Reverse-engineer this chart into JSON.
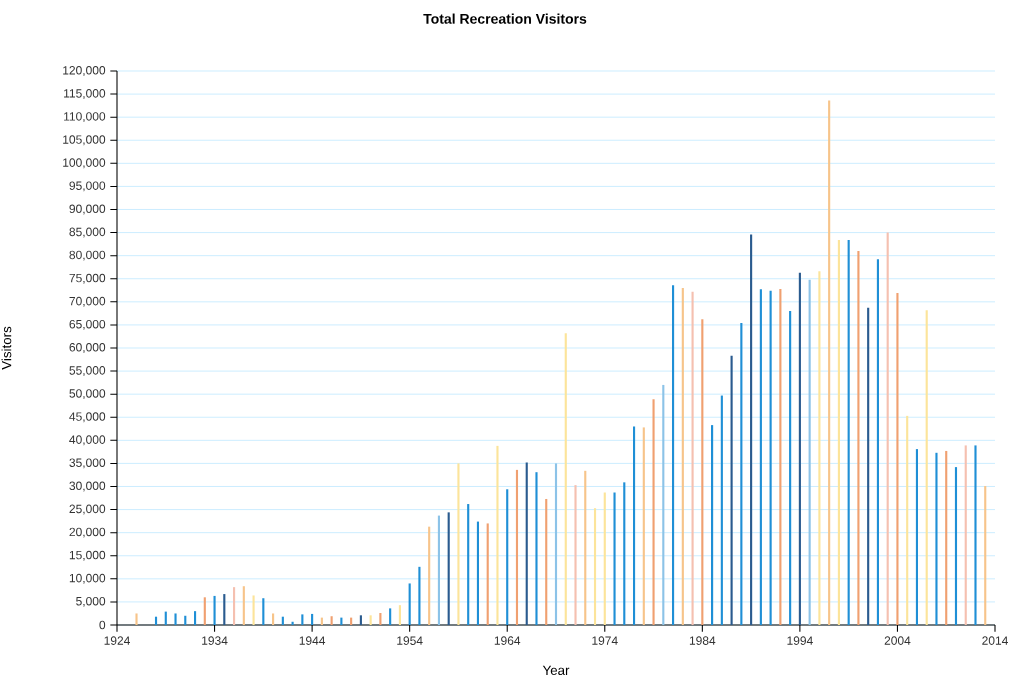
{
  "chart_data": {
    "type": "bar",
    "title": "Total Recreation Visitors",
    "xlabel": "Year",
    "ylabel": "Visitors",
    "x": [
      1926,
      1928,
      1929,
      1930,
      1931,
      1932,
      1933,
      1934,
      1935,
      1936,
      1937,
      1938,
      1939,
      1940,
      1941,
      1942,
      1943,
      1944,
      1945,
      1946,
      1947,
      1948,
      1949,
      1950,
      1951,
      1952,
      1953,
      1954,
      1955,
      1956,
      1957,
      1958,
      1959,
      1960,
      1961,
      1962,
      1963,
      1964,
      1965,
      1966,
      1967,
      1968,
      1969,
      1970,
      1971,
      1972,
      1973,
      1974,
      1975,
      1976,
      1977,
      1978,
      1979,
      1980,
      1981,
      1982,
      1983,
      1984,
      1985,
      1986,
      1987,
      1988,
      1989,
      1990,
      1991,
      1992,
      1993,
      1994,
      1995,
      1996,
      1997,
      1998,
      1999,
      2000,
      2001,
      2002,
      2003,
      2004,
      2005,
      2006,
      2007,
      2008,
      2009,
      2010,
      2011,
      2012,
      2013
    ],
    "values": [
      2500,
      1800,
      2900,
      2500,
      2000,
      3000,
      6000,
      6300,
      6700,
      8200,
      8400,
      6400,
      5800,
      2500,
      1800,
      700,
      2300,
      2400,
      1600,
      1900,
      1600,
      1600,
      2100,
      2100,
      2600,
      3600,
      4300,
      9000,
      12600,
      21300,
      23700,
      24400,
      35000,
      26200,
      22400,
      22000,
      38800,
      29400,
      33600,
      35200,
      33100,
      27300,
      35000,
      63200,
      30300,
      33400,
      25300,
      28700,
      28700,
      30900,
      43000,
      42800,
      48900,
      52000,
      73600,
      73000,
      72200,
      66200,
      43300,
      49700,
      58300,
      65400,
      84600,
      72700,
      72400,
      72800,
      68000,
      76300,
      74800,
      76600,
      113600,
      83400,
      83400,
      81000,
      68700,
      79200,
      85000,
      71900,
      45300,
      38100,
      68200,
      37300,
      37700,
      34200,
      38900,
      38900,
      30100
    ],
    "colors": [
      "#f7c48a",
      "#1f8fd6",
      "#1f8fd6",
      "#1f8fd6",
      "#1f8fd6",
      "#1f8fd6",
      "#f0a070",
      "#1f8fd6",
      "#2a5b8f",
      "#f5c0b0",
      "#f7c48a",
      "#fce49a",
      "#1f8fd6",
      "#f7c48a",
      "#1f8fd6",
      "#1f8fd6",
      "#1f8fd6",
      "#1f8fd6",
      "#f7c48a",
      "#f0a070",
      "#1f8fd6",
      "#f0a070",
      "#2a5b8f",
      "#fce49a",
      "#f0a070",
      "#1f8fd6",
      "#fce49a",
      "#1f8fd6",
      "#1f8fd6",
      "#f7c48a",
      "#8cc3e8",
      "#2a5b8f",
      "#fce49a",
      "#1f8fd6",
      "#1f8fd6",
      "#f0a070",
      "#fce49a",
      "#1f8fd6",
      "#f0a070",
      "#2a5b8f",
      "#1f8fd6",
      "#f0a070",
      "#8cc3e8",
      "#fce49a",
      "#f5c0b0",
      "#f7c48a",
      "#fce49a",
      "#fce49a",
      "#1f8fd6",
      "#1f8fd6",
      "#1f8fd6",
      "#f7c48a",
      "#f0a070",
      "#8cc3e8",
      "#1f8fd6",
      "#f7c48a",
      "#f5c0b0",
      "#f0a070",
      "#1f8fd6",
      "#1f8fd6",
      "#2a5b8f",
      "#1f8fd6",
      "#2a5b8f",
      "#1f8fd6",
      "#1f8fd6",
      "#f0a070",
      "#1f8fd6",
      "#2a5b8f",
      "#8cc3e8",
      "#fce49a",
      "#f7c48a",
      "#fce49a",
      "#1f8fd6",
      "#f0a070",
      "#2a5b8f",
      "#1f8fd6",
      "#f5c0b0",
      "#f0a070",
      "#fce49a",
      "#1f8fd6",
      "#fce49a",
      "#1f8fd6",
      "#f0a070",
      "#1f8fd6",
      "#f5c0b0",
      "#1f8fd6",
      "#f7c48a"
    ],
    "xlim": [
      1924,
      2014
    ],
    "xticks": [
      1924,
      1934,
      1944,
      1954,
      1964,
      1974,
      1984,
      1994,
      2004,
      2014
    ],
    "ylim": [
      0,
      120000
    ],
    "yticks": [
      0,
      {
        "value": 5000,
        "label": "5,000"
      },
      {
        "value": 10000,
        "label": "10,000"
      },
      {
        "value": 15000,
        "label": "15,000"
      },
      {
        "value": 20000,
        "label": "20,000"
      },
      {
        "value": 25000,
        "label": "25,000"
      },
      {
        "value": 30000,
        "label": "30,000"
      },
      {
        "value": 35000,
        "label": "35,000"
      },
      {
        "value": 40000,
        "label": "40,000"
      },
      {
        "value": 45000,
        "label": "45,000"
      },
      {
        "value": 50000,
        "label": "50,000"
      },
      {
        "value": 55000,
        "label": "55,000"
      },
      {
        "value": 60000,
        "label": "60,000"
      },
      {
        "value": 65000,
        "label": "65,000"
      },
      {
        "value": 70000,
        "label": "70,000"
      },
      {
        "value": 75000,
        "label": "75,000"
      },
      {
        "value": 80000,
        "label": "80,000"
      },
      {
        "value": 85000,
        "label": "85,000"
      },
      {
        "value": 90000,
        "label": "90,000"
      },
      {
        "value": 95000,
        "label": "95,000"
      },
      {
        "value": 100000,
        "label": "100,000"
      },
      {
        "value": 105000,
        "label": "105,000"
      },
      {
        "value": 110000,
        "label": "110,000"
      },
      {
        "value": 115000,
        "label": "115,000"
      },
      {
        "value": 120000,
        "label": "120,000"
      }
    ],
    "grid": "y"
  }
}
